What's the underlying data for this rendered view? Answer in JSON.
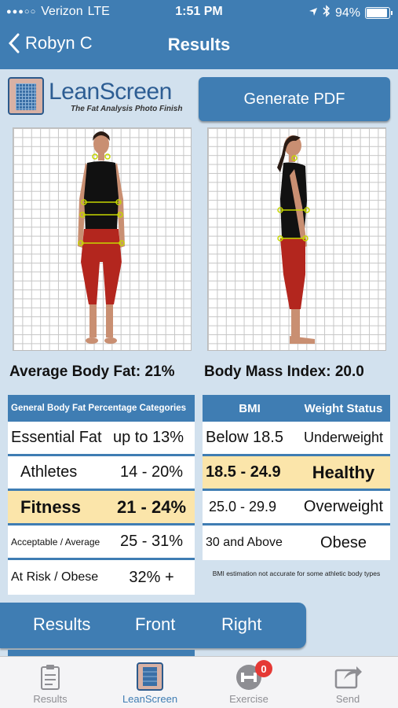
{
  "status_bar": {
    "carrier": "Verizon",
    "network": "LTE",
    "time": "1:51 PM",
    "battery": "94%",
    "battery_level": 0.94
  },
  "nav": {
    "back_label": "Robyn C",
    "title": "Results"
  },
  "logo": {
    "name": "LeanScreen",
    "tagline": "The Fat Analysis Photo Finish"
  },
  "actions": {
    "generate_pdf": "Generate PDF"
  },
  "metrics": {
    "body_fat": "Average Body Fat: 21%",
    "bmi": "Body Mass Index: 20.0"
  },
  "body_fat_table": {
    "header": "General Body Fat Percentage Categories",
    "rows": [
      {
        "category": "Essential Fat",
        "range": "up to 13%"
      },
      {
        "category": "Athletes",
        "range": "14 - 20%"
      },
      {
        "category": "Fitness",
        "range": "21 - 24%"
      },
      {
        "category": "Acceptable / Average",
        "range": "25 - 31%"
      },
      {
        "category": "At Risk / Obese",
        "range": "32% +"
      }
    ]
  },
  "bmi_table": {
    "header_bmi": "BMI",
    "header_status": "Weight Status",
    "rows": [
      {
        "bmi": "Below 18.5",
        "status": "Underweight"
      },
      {
        "bmi": "18.5 - 24.9",
        "status": "Healthy"
      },
      {
        "bmi": "25.0 - 29.9",
        "status": "Overweight"
      },
      {
        "bmi": "30 and Above",
        "status": "Obese"
      }
    ],
    "note": "BMI estimation not accurate for some athletic body types"
  },
  "segments": {
    "results": "Results",
    "front": "Front",
    "right": "Right"
  },
  "tabs": [
    {
      "label": "Results"
    },
    {
      "label": "LeanScreen"
    },
    {
      "label": "Exercise",
      "badge": "0"
    },
    {
      "label": "Send"
    }
  ],
  "colors": {
    "brand": "#3f7db3",
    "background": "#d2e1ee",
    "highlight": "#fbe5aa",
    "badge": "#e53935"
  }
}
